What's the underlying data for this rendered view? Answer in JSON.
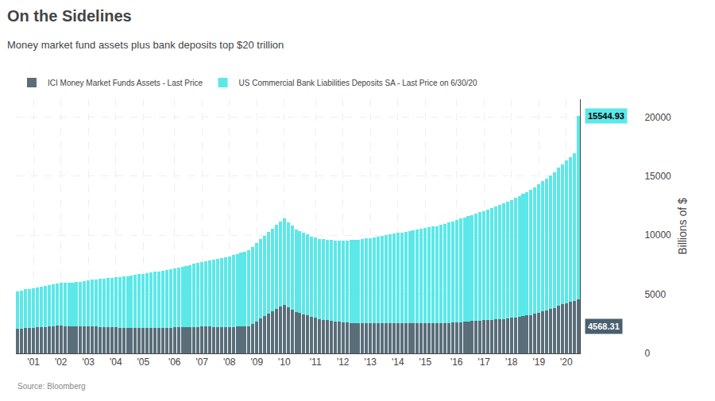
{
  "chart_data": {
    "type": "bar",
    "stacked": true,
    "title": "On the Sidelines",
    "subtitle": "Money market fund assets plus bank deposits top $20 trillion",
    "ylabel": "Billions of $",
    "source": "Source: Bloomberg",
    "legend": "upper left",
    "grid": true,
    "ylim": [
      0,
      21500
    ],
    "yticks": [
      0,
      5000,
      10000,
      15000,
      20000
    ],
    "annotations": [
      {
        "text": "15544.93",
        "color": "#5ce8e8"
      },
      {
        "text": "4568.31",
        "color": "#4a6070"
      }
    ],
    "categories": [
      null,
      null,
      null,
      null,
      "'01",
      null,
      null,
      null,
      null,
      null,
      null,
      "'02",
      null,
      null,
      null,
      null,
      null,
      null,
      "'03",
      null,
      null,
      null,
      null,
      null,
      null,
      "'04",
      null,
      null,
      null,
      null,
      null,
      null,
      "'05",
      null,
      null,
      null,
      null,
      null,
      null,
      null,
      "'06",
      null,
      null,
      null,
      null,
      null,
      null,
      "'07",
      null,
      null,
      null,
      null,
      null,
      null,
      "'08",
      null,
      null,
      null,
      null,
      null,
      null,
      "'09",
      null,
      null,
      null,
      null,
      null,
      null,
      "'10",
      null,
      null,
      null,
      null,
      null,
      null,
      null,
      "'11",
      null,
      null,
      null,
      null,
      null,
      null,
      "'12",
      null,
      null,
      null,
      null,
      null,
      null,
      "'13",
      null,
      null,
      null,
      null,
      null,
      null,
      "'14",
      null,
      null,
      null,
      null,
      null,
      null,
      "'15",
      null,
      null,
      null,
      null,
      null,
      null,
      null,
      "'16",
      null,
      null,
      null,
      null,
      null,
      null,
      "'17",
      null,
      null,
      null,
      null,
      null,
      null,
      "'18",
      null,
      null,
      null,
      null,
      null,
      null,
      "'19",
      null,
      null,
      null,
      null,
      null,
      null,
      "'20",
      null,
      null,
      null
    ],
    "series": [
      {
        "name": "ICI Money Market Funds Assets - Last Price",
        "color": "#5a6e7a",
        "values": [
          2050,
          2080,
          2120,
          2150,
          2170,
          2200,
          2230,
          2250,
          2280,
          2300,
          2320,
          2340,
          2300,
          2280,
          2270,
          2260,
          2260,
          2270,
          2280,
          2290,
          2270,
          2250,
          2230,
          2210,
          2200,
          2190,
          2180,
          2170,
          2160,
          2150,
          2150,
          2150,
          2150,
          2150,
          2150,
          2150,
          2150,
          2160,
          2170,
          2180,
          2190,
          2200,
          2210,
          2220,
          2230,
          2240,
          2250,
          2260,
          2260,
          2260,
          2240,
          2220,
          2210,
          2220,
          2230,
          2250,
          2260,
          2280,
          2290,
          2310,
          2500,
          2700,
          2950,
          3150,
          3350,
          3550,
          3750,
          3950,
          4100,
          3900,
          3700,
          3500,
          3400,
          3300,
          3200,
          3100,
          3000,
          2900,
          2850,
          2800,
          2750,
          2700,
          2660,
          2620,
          2600,
          2580,
          2560,
          2540,
          2530,
          2520,
          2520,
          2520,
          2520,
          2520,
          2520,
          2520,
          2520,
          2520,
          2520,
          2520,
          2520,
          2520,
          2520,
          2520,
          2520,
          2520,
          2520,
          2520,
          2530,
          2550,
          2580,
          2600,
          2620,
          2650,
          2680,
          2710,
          2730,
          2750,
          2770,
          2790,
          2810,
          2830,
          2860,
          2890,
          2920,
          2960,
          3000,
          3050,
          3100,
          3150,
          3200,
          3250,
          3350,
          3450,
          3550,
          3650,
          3750,
          3850,
          4050,
          4150,
          4250,
          4350,
          4450,
          4568
        ]
      },
      {
        "name": "US Commercial Bank Liabilities Deposits SA - Last Price on 6/30/20",
        "color": "#5ce8e8",
        "values": [
          3200,
          3250,
          3290,
          3320,
          3360,
          3400,
          3440,
          3480,
          3520,
          3560,
          3590,
          3620,
          3660,
          3700,
          3740,
          3780,
          3820,
          3860,
          3910,
          3960,
          4010,
          4060,
          4110,
          4160,
          4200,
          4250,
          4290,
          4340,
          4390,
          4440,
          4490,
          4540,
          4590,
          4640,
          4690,
          4740,
          4790,
          4840,
          4900,
          4960,
          5020,
          5080,
          5140,
          5200,
          5260,
          5330,
          5400,
          5470,
          5540,
          5610,
          5680,
          5750,
          5820,
          5900,
          5980,
          6070,
          6160,
          6250,
          6340,
          6430,
          6530,
          6620,
          6720,
          6820,
          6920,
          7020,
          7120,
          7220,
          7320,
          7200,
          7100,
          7000,
          6950,
          6900,
          6850,
          6800,
          6800,
          6800,
          6810,
          6820,
          6830,
          6850,
          6880,
          6900,
          6950,
          7000,
          7050,
          7100,
          7150,
          7200,
          7250,
          7300,
          7360,
          7420,
          7480,
          7540,
          7600,
          7660,
          7720,
          7780,
          7840,
          7900,
          7960,
          8020,
          8080,
          8140,
          8200,
          8260,
          8340,
          8420,
          8500,
          8580,
          8660,
          8740,
          8820,
          8900,
          8990,
          9080,
          9170,
          9260,
          9360,
          9460,
          9560,
          9660,
          9760,
          9870,
          9980,
          10090,
          10210,
          10330,
          10450,
          10580,
          10720,
          10860,
          11000,
          11150,
          11300,
          11450,
          11650,
          11850,
          12050,
          12250,
          12450,
          15544
        ]
      }
    ]
  }
}
